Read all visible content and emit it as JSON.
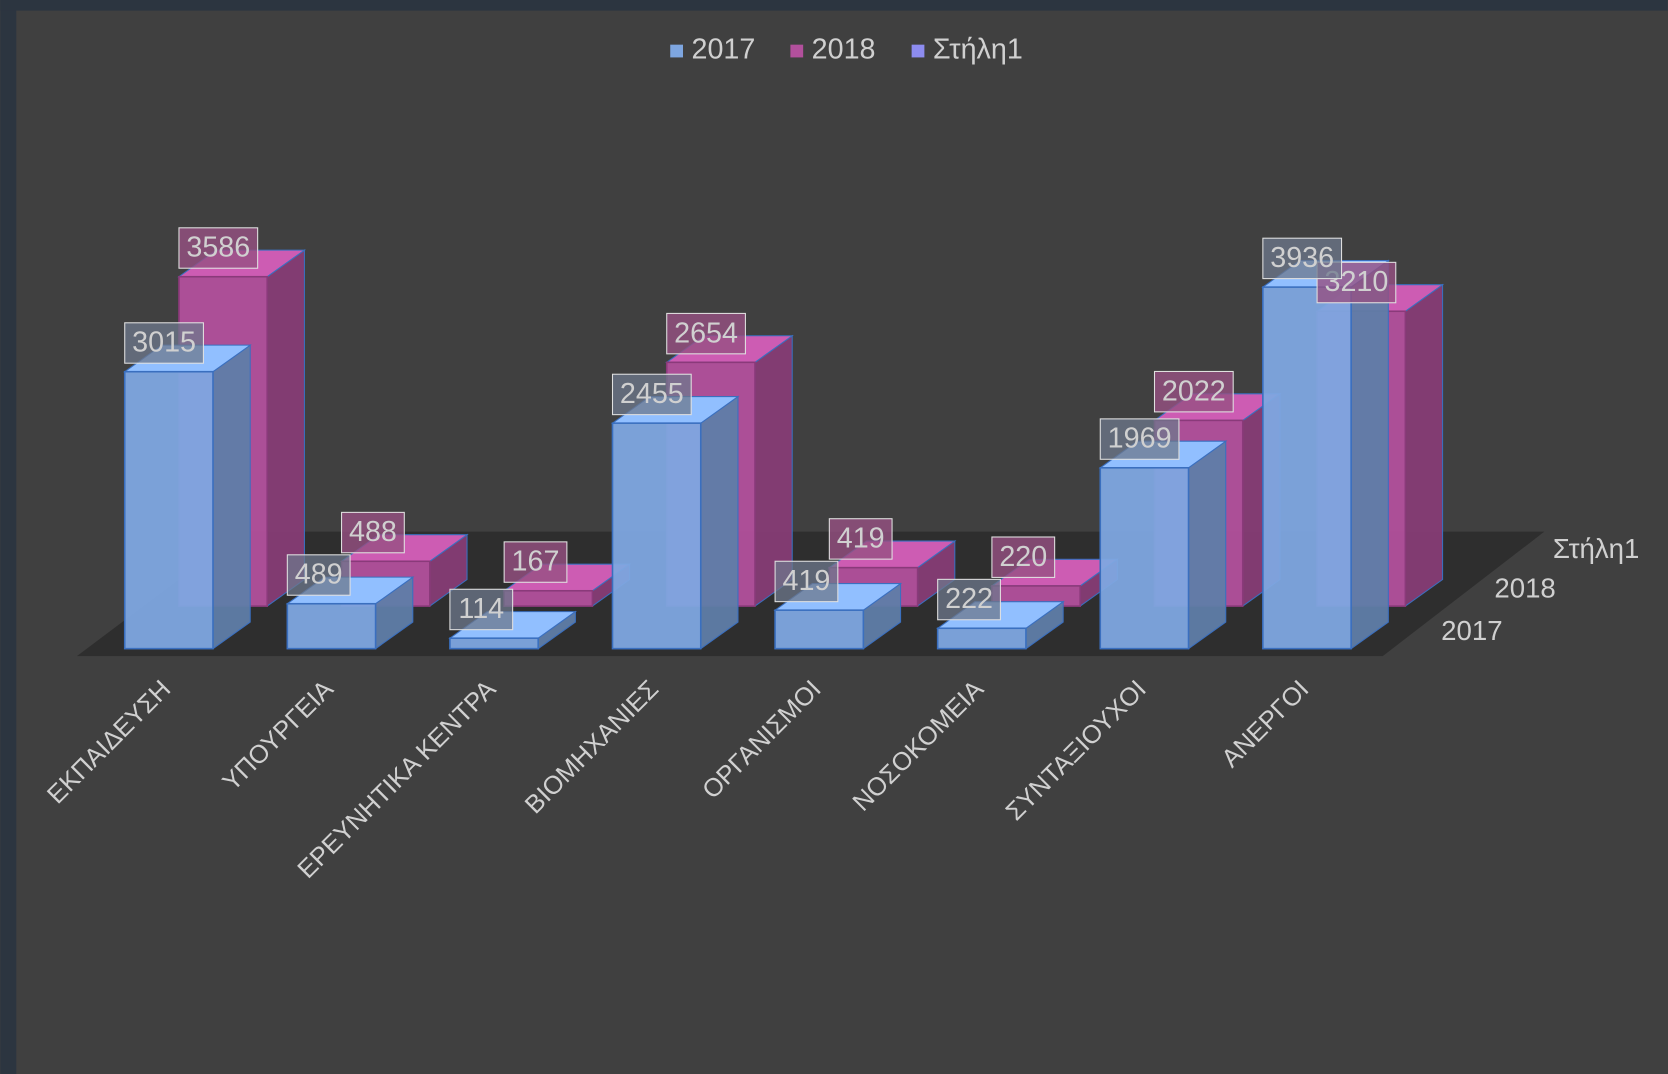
{
  "chart_data": {
    "type": "bar3d",
    "categories": [
      "ΕΚΠΑΙΔΕΥΣΗ",
      "ΥΠΟΥΡΓΕΙΑ",
      "ΕΡΕΥΝΗΤΙΚΑ  ΚΕΝΤΡΑ",
      "ΒΙΟΜΗΧΑΝΙΕΣ",
      "ΟΡΓΑΝΙΣΜΟΙ",
      "ΝΟΣΟΚΟΜΕΙΑ",
      "ΣΥΝΤΑΞΙΟΥΧΟΙ",
      "ΑΝΕΡΓΟΙ"
    ],
    "series": [
      {
        "name": "2017",
        "color": "#7ea6e0",
        "values": [
          3015,
          489,
          114,
          2455,
          419,
          222,
          1969,
          3936
        ]
      },
      {
        "name": "2018",
        "color": "#b2509c",
        "values": [
          3586,
          488,
          167,
          2654,
          419,
          220,
          2022,
          3210
        ]
      },
      {
        "name": "Στήλη1",
        "color": "#8d8cf0",
        "values": [
          null,
          null,
          null,
          null,
          null,
          null,
          null,
          null
        ]
      }
    ],
    "legend": "top"
  }
}
